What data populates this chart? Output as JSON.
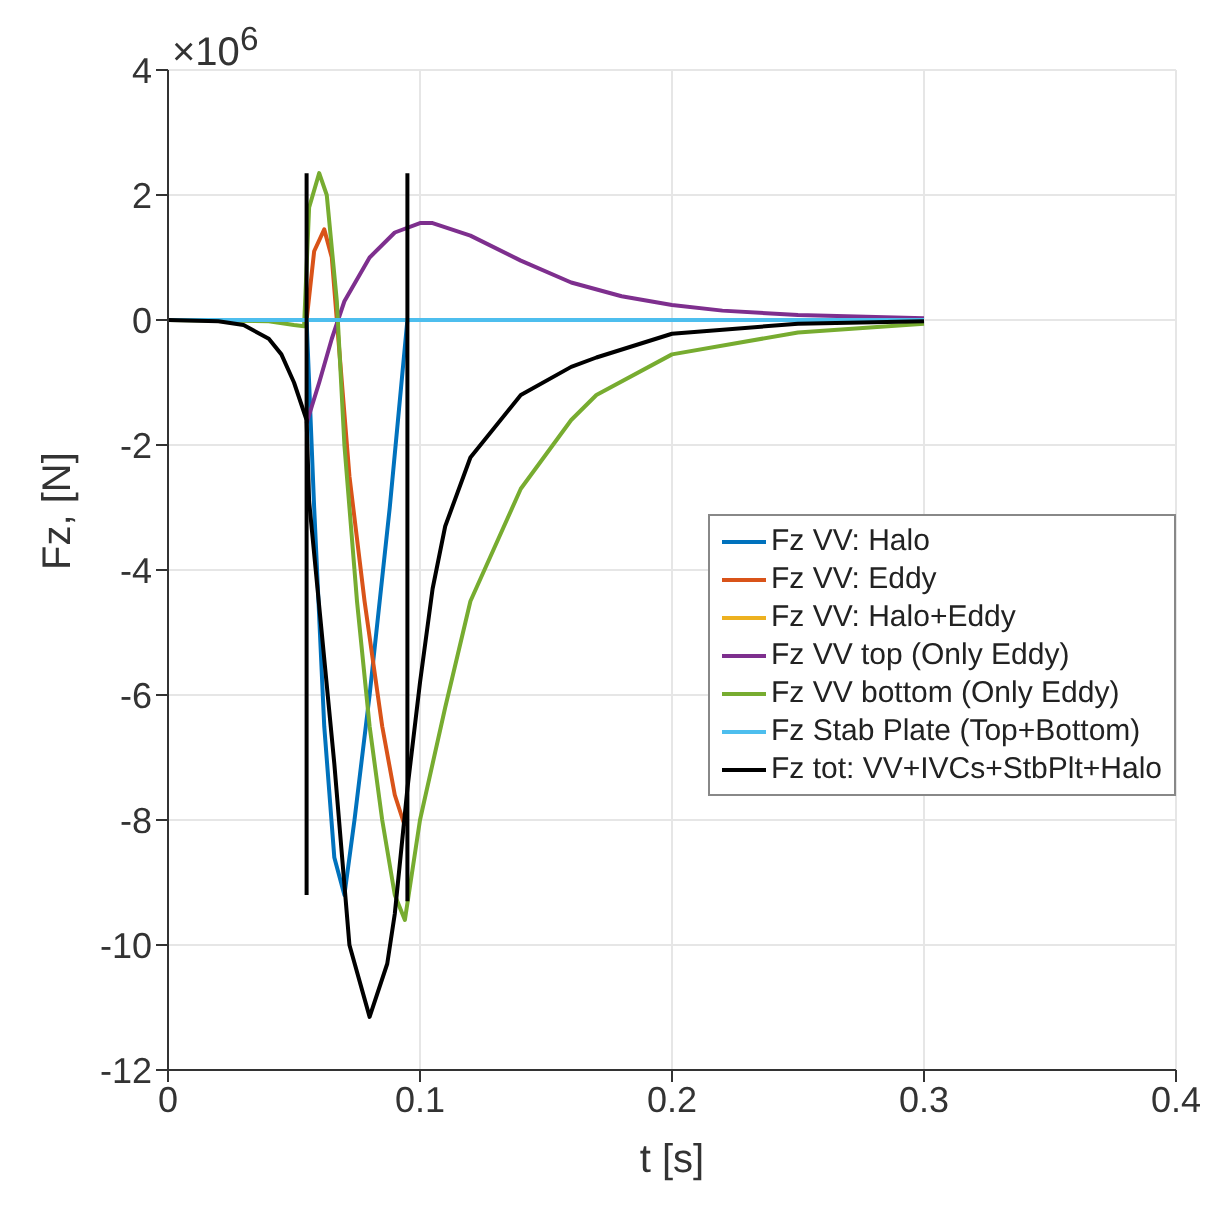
{
  "chart_data": {
    "type": "line",
    "xlabel": "t [s]",
    "ylabel": "Fz, [N]",
    "annotations": [
      "×10$^{6}$"
    ],
    "xlim": [
      0,
      0.4
    ],
    "xticks": [
      0,
      0.1,
      0.2,
      0.3,
      0.4
    ],
    "ylim": [
      -12,
      4
    ],
    "yticks": [
      -12,
      -10,
      -8,
      -6,
      -4,
      -2,
      0,
      2,
      4
    ],
    "grid": true,
    "legend": "right",
    "line_style": "solid",
    "marker": "none",
    "series": [
      {
        "name": "Fz VV: Halo",
        "color": "#0072bd",
        "x": [
          0,
          0.055,
          0.058,
          0.062,
          0.066,
          0.07,
          0.074,
          0.08,
          0.088,
          0.095
        ],
        "values": [
          0,
          0,
          -3,
          -6.5,
          -8.6,
          -9.2,
          -8,
          -6,
          -3,
          0
        ]
      },
      {
        "name": "Fz VV: Eddy",
        "color": "#d95319",
        "x": [
          0,
          0.055,
          0.058,
          0.062,
          0.065,
          0.068,
          0.072,
          0.078,
          0.085,
          0.09,
          0.094
        ],
        "values": [
          0,
          0,
          1.1,
          1.45,
          1,
          -0.5,
          -2.5,
          -4.5,
          -6.5,
          -7.6,
          -8.1
        ]
      },
      {
        "name": "Fz VV: Halo+Eddy",
        "color": "#edb120"
      },
      {
        "name": "Fz VV top (Only Eddy)",
        "color": "#7e2f8e",
        "x": [
          0.055,
          0.06,
          0.065,
          0.07,
          0.08,
          0.09,
          0.1,
          0.105,
          0.12,
          0.14,
          0.16,
          0.18,
          0.2,
          0.22,
          0.25,
          0.3
        ],
        "values": [
          -1.65,
          -1,
          -0.3,
          0.3,
          1,
          1.4,
          1.55,
          1.55,
          1.35,
          0.95,
          0.6,
          0.38,
          0.24,
          0.15,
          0.08,
          0.03
        ]
      },
      {
        "name": "Fz VV bottom (Only Eddy)",
        "color": "#77ac30",
        "x": [
          0,
          0.04,
          0.05,
          0.054,
          0.056,
          0.06,
          0.063,
          0.067,
          0.07,
          0.075,
          0.08,
          0.085,
          0.09,
          0.094,
          0.1,
          0.11,
          0.12,
          0.14,
          0.16,
          0.17,
          0.2,
          0.25,
          0.3
        ],
        "values": [
          0,
          -0.02,
          -0.08,
          -0.1,
          1.8,
          2.35,
          2,
          0.3,
          -2,
          -4.5,
          -6.5,
          -8,
          -9.2,
          -9.6,
          -8,
          -6.2,
          -4.5,
          -2.7,
          -1.6,
          -1.2,
          -0.55,
          -0.2,
          -0.06
        ]
      },
      {
        "name": "Fz Stab Plate (Top+Bottom)",
        "color": "#4dbeee",
        "x": [
          0,
          0.3
        ],
        "values": [
          0,
          0
        ]
      },
      {
        "name": "Fz tot: VV+IVCs+StbPlt+Halo",
        "color": "#000000",
        "x": [
          0,
          0.02,
          0.03,
          0.04,
          0.045,
          0.05,
          0.055,
          0.056,
          0.066,
          0.072,
          0.08,
          0.087,
          0.09,
          0.095,
          0.1,
          0.105,
          0.11,
          0.12,
          0.14,
          0.16,
          0.17,
          0.2,
          0.25,
          0.3
        ],
        "values": [
          0,
          -0.02,
          -0.08,
          -0.3,
          -0.55,
          -1,
          -1.6,
          -2.9,
          -7.1,
          -10,
          -11.15,
          -10.3,
          -9.5,
          -7.5,
          -5.8,
          -4.3,
          -3.3,
          -2.2,
          -1.2,
          -0.75,
          -0.6,
          -0.22,
          -0.06,
          -0.02
        ]
      },
      {
        "color": "#000000",
        "x": [
          0.055,
          0.055
        ],
        "values": [
          -9.2,
          2.35
        ]
      },
      {
        "color": "#000000",
        "x": [
          0.095,
          0.095
        ],
        "values": [
          -9.3,
          2.35
        ]
      }
    ]
  }
}
